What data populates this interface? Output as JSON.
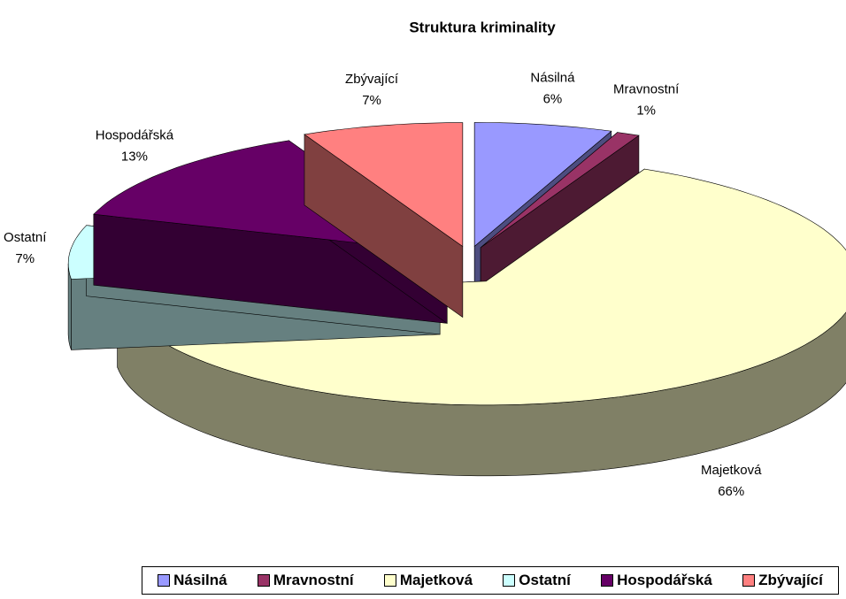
{
  "chart_data": {
    "type": "pie",
    "title": "Struktura kriminality",
    "categories": [
      "Násilná",
      "Mravnostní",
      "Majetková",
      "Ostatní",
      "Hospodářská",
      "Zbývající"
    ],
    "values": [
      6,
      1,
      66,
      7,
      13,
      7
    ],
    "value_labels": [
      "6%",
      "1%",
      "66%",
      "7%",
      "13%",
      "7%"
    ],
    "colors": [
      "#9999ff",
      "#993366",
      "#ffffcc",
      "#ccffff",
      "#660066",
      "#ff8080"
    ],
    "legend": "bottom"
  }
}
